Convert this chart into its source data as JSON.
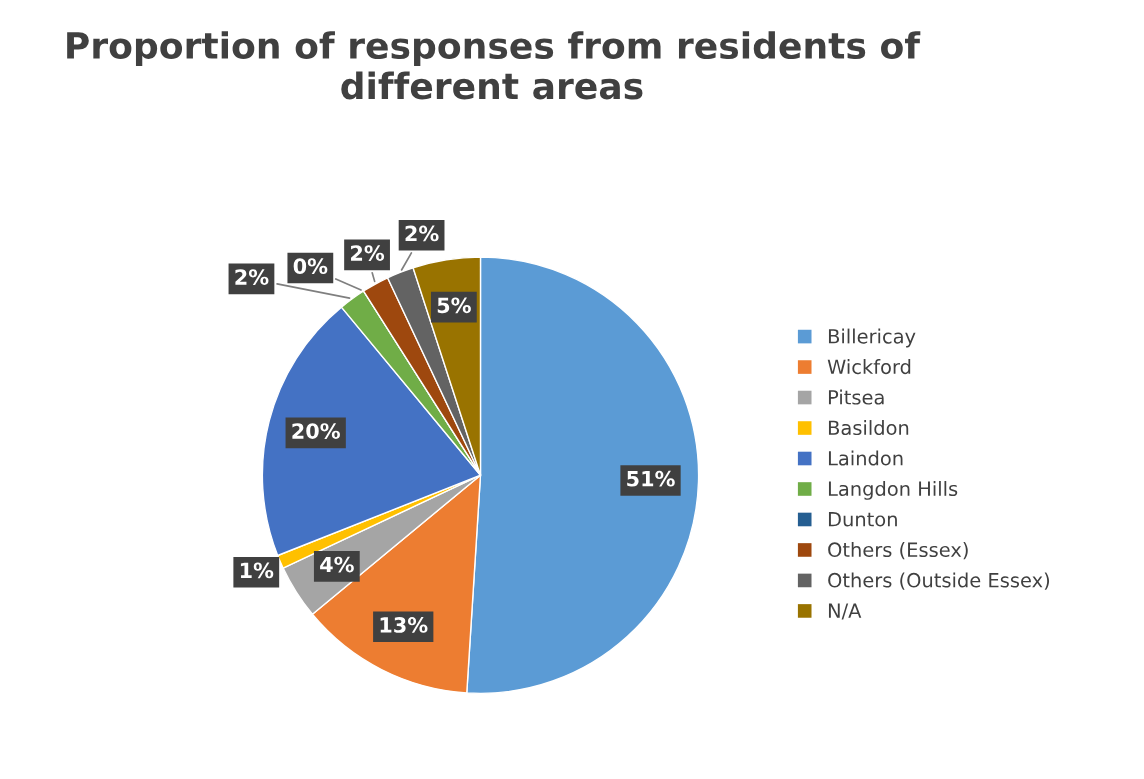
{
  "chart_data": {
    "type": "pie",
    "title": "Proportion of responses from residents of different areas",
    "categories": [
      "Billericay",
      "Wickford",
      "Pitsea",
      "Basildon",
      "Laindon",
      "Langdon Hills",
      "Dunton",
      "Others (Essex)",
      "Others (Outside Essex)",
      "N/A"
    ],
    "values": [
      51,
      13,
      4,
      1,
      20,
      2,
      0,
      2,
      2,
      5
    ],
    "colors": [
      "#5b9bd5",
      "#ed7d31",
      "#a5a5a5",
      "#ffc000",
      "#4472c4",
      "#70ad47",
      "#255e91",
      "#9e480e",
      "#636363",
      "#997300"
    ],
    "value_labels": [
      "51%",
      "13%",
      "4%",
      "1%",
      "20%",
      "2%",
      "0%",
      "2%",
      "2%",
      "5%"
    ],
    "legend": "right"
  }
}
